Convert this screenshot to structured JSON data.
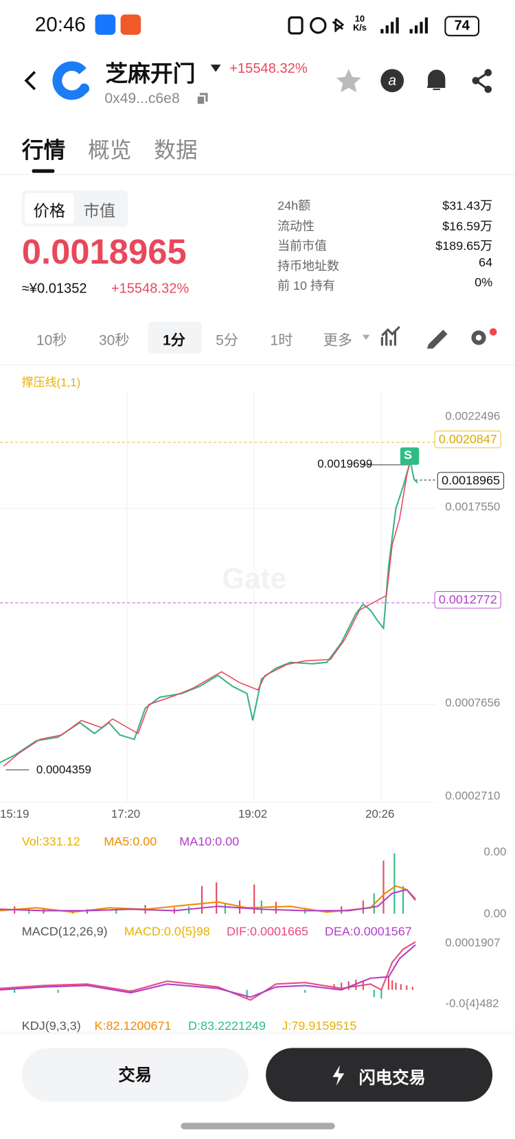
{
  "status_bar": {
    "time": "20:46",
    "net_speed": "10",
    "net_unit": "K/s",
    "battery": "74"
  },
  "header": {
    "title": "芝麻开门",
    "change": "+15548.32%",
    "address": "0x49...c6e8"
  },
  "tabs": [
    "行情",
    "概览",
    "数据"
  ],
  "price_toggle": [
    "价格",
    "市值"
  ],
  "price": {
    "value": "0.0018965",
    "cny": "≈¥0.01352",
    "change": "+15548.32%"
  },
  "stats": [
    [
      "24h额",
      "$31.43万"
    ],
    [
      "流动性",
      "$16.59万"
    ],
    [
      "当前市值",
      "$189.65万"
    ],
    [
      "持币地址数",
      "64"
    ],
    [
      "前 10 持有",
      "0%"
    ]
  ],
  "intervals": [
    "10秒",
    "30秒",
    "1分",
    "5分",
    "1时",
    "更多"
  ],
  "chart": {
    "indicator": "撑压线(1,1)",
    "price_axis": [
      "0.0022496",
      "0.0017550",
      "0.0007656",
      "0.0002710"
    ],
    "resistance": "0.0020847",
    "current": "0.0018965",
    "support": "0.0012772",
    "high": "0.0019699",
    "low": "0.0004359",
    "signal": "S",
    "times": [
      "15:19",
      "17:20",
      "19:02",
      "20:26"
    ]
  },
  "volume": {
    "label": "Vol:331.12",
    "ma5": "MA5:0.00",
    "ma10": "MA10:0.00",
    "axis": [
      "0.00",
      "0.00"
    ]
  },
  "macd": {
    "label": "MACD(12,26,9)",
    "macd": "MACD:0.0{5}98",
    "dif": "DIF:0.0001665",
    "dea": "DEA:0.0001567",
    "axis": [
      "0.0001907",
      "-0.0{4}482"
    ]
  },
  "kdj": {
    "label": "KDJ(9,3,3)",
    "k": "K:82.1200671",
    "d": "D:83.2221249",
    "j": "J:79.9159515"
  },
  "buttons": [
    "交易",
    "闪电交易"
  ]
}
